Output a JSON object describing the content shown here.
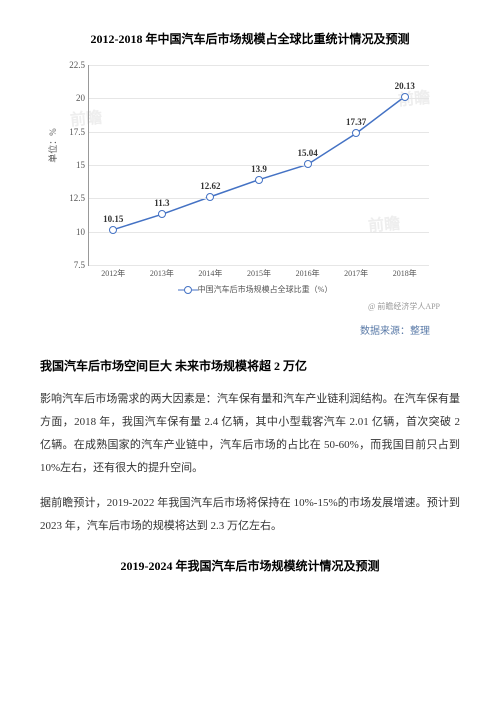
{
  "chart": {
    "title": "2012-2018 年中国汽车后市场规模占全球比重统计情况及预测",
    "type": "line",
    "y_label": "单位：%",
    "ylim": [
      7.5,
      22.5
    ],
    "ytick_step": 2.5,
    "categories": [
      "2012年",
      "2013年",
      "2014年",
      "2015年",
      "2016年",
      "2017年",
      "2018年"
    ],
    "values": [
      10.15,
      11.3,
      12.62,
      13.9,
      15.04,
      17.37,
      20.13
    ],
    "line_color": "#4472c4",
    "marker_style": "circle-open",
    "marker_size": 8,
    "line_width": 1.5,
    "background_color": "#ffffff",
    "grid_color": "#e6e6e6",
    "legend_label": "中国汽车后市场规模占全球比重（%）",
    "watermark_app": "@ 前瞻经济学人APP",
    "source": "数据来源：整理"
  },
  "body": {
    "subtitle": "我国汽车后市场空间巨大 未来市场规模将超 2 万亿",
    "p1": "影响汽车后市场需求的两大因素是：汽车保有量和汽车产业链利润结构。在汽车保有量方面，2018 年，我国汽车保有量 2.4 亿辆，其中小型载客汽车 2.01 亿辆，首次突破 2 亿辆。在成熟国家的汽车产业链中，汽车后市场的占比在 50-60%，而我国目前只占到 10%左右，还有很大的提升空间。",
    "p2": "据前瞻预计，2019-2022 年我国汽车后市场将保持在 10%-15%的市场发展增速。预计到 2023 年，汽车后市场的规模将达到 2.3 万亿左右。",
    "title2": "2019-2024 年我国汽车后市场规模统计情况及预测"
  }
}
